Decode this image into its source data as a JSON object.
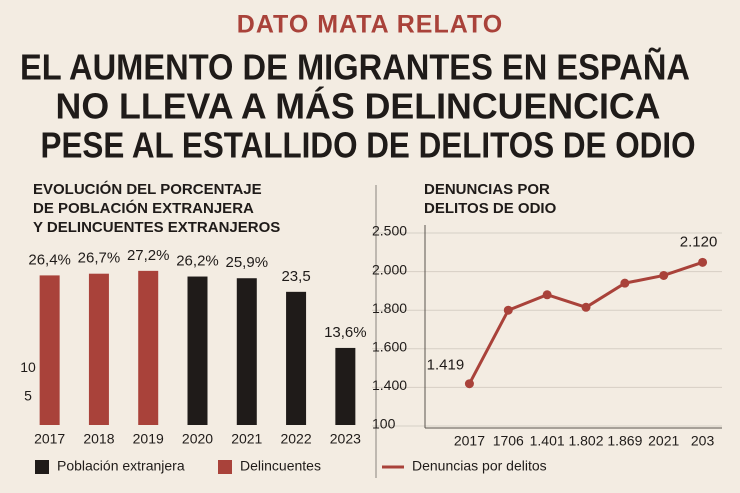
{
  "header": {
    "kicker": "DATO MATA RELATO",
    "headline": [
      "EL AUMENTO DE MIGRANTES EN ESPAÑA",
      "NO LLEVA A MÁS DELINCUENCICA",
      "PESE AL ESTALLIDO DE DELITOS DE ODIO"
    ]
  },
  "chart_data": [
    {
      "type": "bar",
      "title": [
        "EVOLUCIÓN DEL PORCENTAJE",
        "DE POBLACIÓN EXTRANJERA",
        "Y DELINCUENTES EXTRANJEROS"
      ],
      "categories": [
        "2017",
        "2018",
        "2019",
        "2020",
        "2021",
        "2022",
        "2023"
      ],
      "series": [
        {
          "name": "Población extranjera",
          "color": "#1f1b19",
          "values": [
            null,
            null,
            null,
            26.2,
            25.9,
            23.5,
            13.6
          ],
          "value_labels": [
            null,
            null,
            null,
            "26,2%",
            "25,9%",
            "23,5",
            "13,6%"
          ]
        },
        {
          "name": "Delincuentes",
          "color": "#a9423a",
          "values": [
            26.4,
            26.7,
            27.2,
            null,
            null,
            null,
            null
          ],
          "value_labels": [
            "26,4%",
            "26,7%",
            "27,2%",
            null,
            null,
            null,
            null
          ]
        }
      ],
      "ylim": [
        0,
        30
      ],
      "yticks": [
        5,
        10
      ],
      "legend": "bottom"
    },
    {
      "type": "line",
      "title": [
        "DENUNCIAS POR",
        "DELITOS DE ODIO"
      ],
      "categories": [
        "2017",
        "1706",
        "1.401",
        "1.802",
        "1.869",
        "2021",
        "203"
      ],
      "series": [
        {
          "name": "Denuncias por delitos",
          "color": "#a9423a",
          "values": [
            1419,
            1800,
            1880,
            1815,
            1940,
            1980,
            2120
          ],
          "value_labels": [
            "1.419",
            null,
            null,
            null,
            null,
            null,
            "2.120"
          ]
        }
      ],
      "ylim": [
        100,
        2500
      ],
      "yticks": [
        {
          "value": 2500,
          "label": "2.500"
        },
        {
          "value": 2000,
          "label": "2.000"
        },
        {
          "value": 1800,
          "label": "1.800"
        },
        {
          "value": 1600,
          "label": "1.600"
        },
        {
          "value": 1400,
          "label": "1.400"
        },
        100
      ],
      "grid": true,
      "legend": "bottom"
    }
  ]
}
